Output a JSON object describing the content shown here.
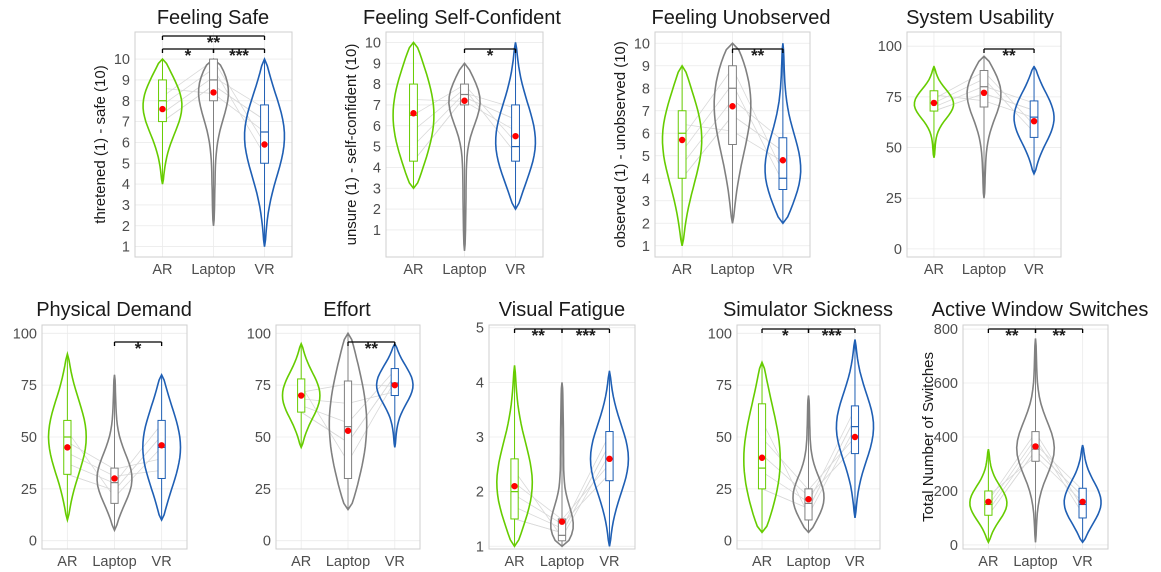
{
  "colors": {
    "AR": "#66cc00",
    "Laptop": "#808080",
    "VR": "#1f5fb4",
    "mean": "#ff0000",
    "grid": "#ebebeb",
    "paired": "#d9d9d9"
  },
  "chart_data": [
    {
      "type": "violin",
      "title": "Feeling Safe",
      "ylabel": "thretened (1) - safe (10)",
      "categories": [
        "AR",
        "Laptop",
        "VR"
      ],
      "yticks": [
        1,
        2,
        3,
        4,
        5,
        6,
        7,
        8,
        9,
        10
      ],
      "ylim": [
        0.5,
        11.3
      ],
      "series": [
        {
          "name": "AR",
          "mean": 7.6,
          "min": 4,
          "q1": 7,
          "median": 8,
          "q3": 9,
          "max": 10
        },
        {
          "name": "Laptop",
          "mean": 8.4,
          "min": 2,
          "q1": 8,
          "median": 9,
          "q3": 10,
          "max": 10
        },
        {
          "name": "VR",
          "mean": 5.9,
          "min": 1,
          "q1": 5,
          "median": 6.5,
          "q3": 7.8,
          "max": 10
        }
      ],
      "significance": [
        {
          "from": "AR",
          "to": "Laptop",
          "label": "*"
        },
        {
          "from": "Laptop",
          "to": "VR",
          "label": "***"
        },
        {
          "from": "AR",
          "to": "VR",
          "label": "**"
        }
      ]
    },
    {
      "type": "violin",
      "title": "Feeling Self-Confident",
      "ylabel": "unsure (1) - self-confident (10)",
      "categories": [
        "AR",
        "Laptop",
        "VR"
      ],
      "yticks": [
        1,
        2,
        3,
        4,
        5,
        6,
        7,
        8,
        9,
        10
      ],
      "ylim": [
        -0.3,
        10.5
      ],
      "series": [
        {
          "name": "AR",
          "mean": 6.6,
          "min": 3,
          "q1": 4.3,
          "median": 6.5,
          "q3": 8,
          "max": 10
        },
        {
          "name": "Laptop",
          "mean": 7.2,
          "min": 0,
          "q1": 7,
          "median": 7.5,
          "q3": 8,
          "max": 9
        },
        {
          "name": "VR",
          "mean": 5.5,
          "min": 2,
          "q1": 4.3,
          "median": 5,
          "q3": 7,
          "max": 10
        }
      ],
      "significance": [
        {
          "from": "Laptop",
          "to": "VR",
          "label": "*"
        }
      ]
    },
    {
      "type": "violin",
      "title": "Feeling Unobserved",
      "ylabel": "observed (1) - unobserved (10)",
      "categories": [
        "AR",
        "Laptop",
        "VR"
      ],
      "yticks": [
        1,
        2,
        3,
        4,
        5,
        6,
        7,
        8,
        9,
        10
      ],
      "ylim": [
        0.5,
        10.5
      ],
      "series": [
        {
          "name": "AR",
          "mean": 5.7,
          "min": 1,
          "q1": 4,
          "median": 6,
          "q3": 7,
          "max": 9
        },
        {
          "name": "Laptop",
          "mean": 7.2,
          "min": 2,
          "q1": 5.5,
          "median": 8,
          "q3": 9,
          "max": 10
        },
        {
          "name": "VR",
          "mean": 4.8,
          "min": 2,
          "q1": 3.5,
          "median": 4,
          "q3": 5.8,
          "max": 10
        }
      ],
      "significance": [
        {
          "from": "Laptop",
          "to": "VR",
          "label": "**"
        }
      ]
    },
    {
      "type": "violin",
      "title": "System Usability",
      "ylabel": "",
      "categories": [
        "AR",
        "Laptop",
        "VR"
      ],
      "yticks": [
        0,
        25,
        50,
        75,
        100
      ],
      "ylim": [
        -4,
        107
      ],
      "series": [
        {
          "name": "AR",
          "mean": 72,
          "min": 45,
          "q1": 68,
          "median": 72,
          "q3": 78,
          "max": 90
        },
        {
          "name": "Laptop",
          "mean": 77,
          "min": 25,
          "q1": 70,
          "median": 80,
          "q3": 88,
          "max": 95
        },
        {
          "name": "VR",
          "mean": 63,
          "min": 37,
          "q1": 55,
          "median": 65,
          "q3": 73,
          "max": 90
        }
      ],
      "significance": [
        {
          "from": "Laptop",
          "to": "VR",
          "label": "**"
        }
      ]
    },
    {
      "type": "violin",
      "title": "Physical Demand",
      "ylabel": "",
      "categories": [
        "AR",
        "Laptop",
        "VR"
      ],
      "yticks": [
        0,
        25,
        50,
        75,
        100
      ],
      "ylim": [
        -4,
        104
      ],
      "series": [
        {
          "name": "AR",
          "mean": 45,
          "min": 10,
          "q1": 32,
          "median": 50,
          "q3": 58,
          "max": 90
        },
        {
          "name": "Laptop",
          "mean": 30,
          "min": 5,
          "q1": 18,
          "median": 28,
          "q3": 35,
          "max": 80
        },
        {
          "name": "VR",
          "mean": 46,
          "min": 10,
          "q1": 30,
          "median": 45,
          "q3": 58,
          "max": 80
        }
      ],
      "significance": [
        {
          "from": "Laptop",
          "to": "VR",
          "label": "*"
        }
      ]
    },
    {
      "type": "violin",
      "title": "Effort",
      "ylabel": "",
      "categories": [
        "AR",
        "Laptop",
        "VR"
      ],
      "yticks": [
        0,
        25,
        50,
        75,
        100
      ],
      "ylim": [
        -4,
        104
      ],
      "series": [
        {
          "name": "AR",
          "mean": 70,
          "min": 45,
          "q1": 62,
          "median": 70,
          "q3": 78,
          "max": 95
        },
        {
          "name": "Laptop",
          "mean": 53,
          "min": 15,
          "q1": 30,
          "median": 55,
          "q3": 77,
          "max": 100
        },
        {
          "name": "VR",
          "mean": 75,
          "min": 45,
          "q1": 70,
          "median": 76,
          "q3": 83,
          "max": 95
        }
      ],
      "significance": [
        {
          "from": "Laptop",
          "to": "VR",
          "label": "**"
        }
      ]
    },
    {
      "type": "violin",
      "title": "Visual Fatigue",
      "ylabel": "",
      "categories": [
        "AR",
        "Laptop",
        "VR"
      ],
      "yticks": [
        1,
        2,
        3,
        4,
        5
      ],
      "ylim": [
        0.95,
        5.05
      ],
      "series": [
        {
          "name": "AR",
          "mean": 2.1,
          "min": 1,
          "q1": 1.5,
          "median": 2,
          "q3": 2.6,
          "max": 4.3
        },
        {
          "name": "Laptop",
          "mean": 1.45,
          "min": 1,
          "q1": 1.1,
          "median": 1.2,
          "q3": 1.5,
          "max": 4
        },
        {
          "name": "VR",
          "mean": 2.6,
          "min": 1,
          "q1": 2.2,
          "median": 2.6,
          "q3": 3.1,
          "max": 4.2
        }
      ],
      "significance": [
        {
          "from": "AR",
          "to": "Laptop",
          "label": "**"
        },
        {
          "from": "Laptop",
          "to": "VR",
          "label": "***"
        }
      ]
    },
    {
      "type": "violin",
      "title": "Simulator Sickness",
      "ylabel": "",
      "categories": [
        "AR",
        "Laptop",
        "VR"
      ],
      "yticks": [
        0,
        25,
        50,
        75,
        100
      ],
      "ylim": [
        -4,
        104
      ],
      "series": [
        {
          "name": "AR",
          "mean": 40,
          "min": 4,
          "q1": 25,
          "median": 35,
          "q3": 66,
          "max": 86
        },
        {
          "name": "Laptop",
          "mean": 20,
          "min": 4,
          "q1": 10,
          "median": 18,
          "q3": 25,
          "max": 70
        },
        {
          "name": "VR",
          "mean": 50,
          "min": 11,
          "q1": 42,
          "median": 55,
          "q3": 65,
          "max": 97
        }
      ],
      "significance": [
        {
          "from": "AR",
          "to": "Laptop",
          "label": "*"
        },
        {
          "from": "Laptop",
          "to": "VR",
          "label": "***"
        }
      ]
    },
    {
      "type": "violin",
      "title": "Active Window Switches",
      "ylabel": "Total Number of Switches",
      "categories": [
        "AR",
        "Laptop",
        "VR"
      ],
      "yticks": [
        0,
        200,
        400,
        600,
        800
      ],
      "ylim": [
        -15,
        815
      ],
      "series": [
        {
          "name": "AR",
          "mean": 160,
          "min": 10,
          "q1": 110,
          "median": 150,
          "q3": 200,
          "max": 355
        },
        {
          "name": "Laptop",
          "mean": 365,
          "min": 10,
          "q1": 310,
          "median": 355,
          "q3": 420,
          "max": 765
        },
        {
          "name": "VR",
          "mean": 160,
          "min": 10,
          "q1": 100,
          "median": 150,
          "q3": 210,
          "max": 370
        }
      ],
      "significance": [
        {
          "from": "AR",
          "to": "Laptop",
          "label": "**"
        },
        {
          "from": "Laptop",
          "to": "VR",
          "label": "**"
        }
      ]
    }
  ]
}
